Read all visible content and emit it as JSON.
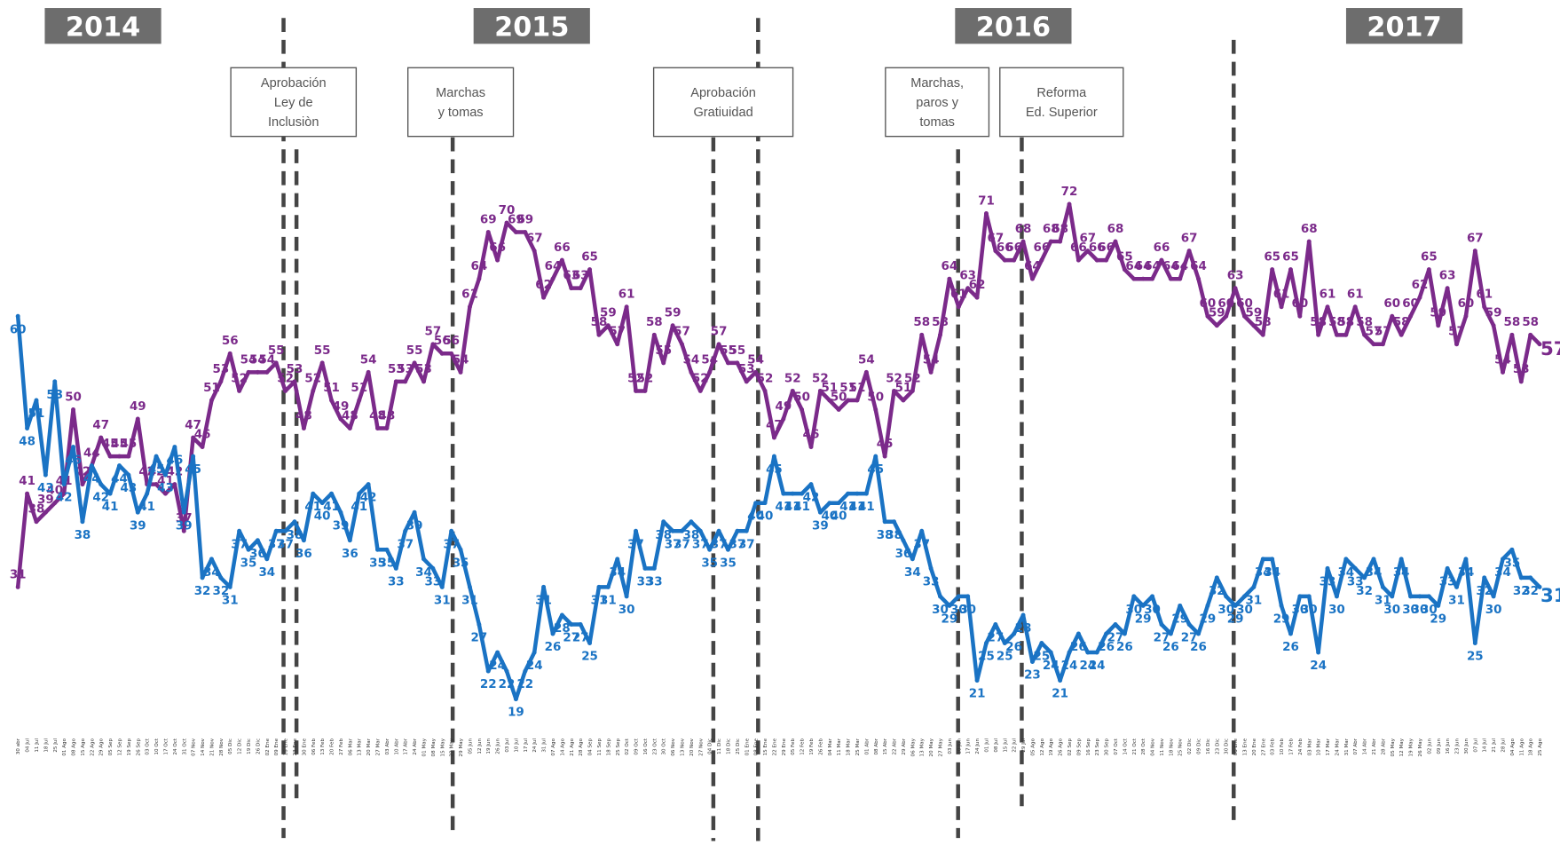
{
  "chart_data": {
    "type": "line",
    "years": [
      "2014",
      "2015",
      "2016",
      "2017"
    ],
    "annotations": [
      [
        "Aprobación",
        "Ley de",
        "Inclusiòn"
      ],
      [
        "Marchas",
        "y tomas"
      ],
      [
        "Aprobación",
        "Gratiuidad"
      ],
      [
        "Marchas,",
        "paros y",
        "tomas"
      ],
      [
        "Reforma",
        "Ed. Superior"
      ]
    ],
    "categories": [
      "30 abr",
      "04 Jul",
      "11 Jul",
      "18 Jul",
      "25 Jul",
      "01 Ago",
      "08 Ago",
      "15 Ago",
      "22 Ago",
      "29 Ago",
      "05 Sep",
      "12 Sep",
      "19 Sep",
      "26 Sep",
      "03 Oct",
      "10 Oct",
      "17 Oct",
      "24 Oct",
      "31 Oct",
      "07 Nov",
      "14 Nov",
      "21 Nov",
      "28 Nov",
      "05 Dic",
      "12 Dic",
      "19 Dic",
      "26 Dic",
      "02 Ene",
      "09 Ene",
      "16 Ene",
      "23 Ene",
      "30 Ene",
      "06 Feb",
      "13 Feb",
      "20 Feb",
      "27 Feb",
      "06 Mar",
      "13 Mar",
      "20 Mar",
      "27 Mar",
      "03 Abr",
      "10 Abr",
      "17 Abr",
      "24 Abr",
      "01 May",
      "08 May",
      "15 May",
      "22 May",
      "29 May",
      "05 Jun",
      "12 Jun",
      "19 Jun",
      "26 Jun",
      "03 Jul",
      "10 Jul",
      "17 Jul",
      "24 Jul",
      "31 Jul",
      "07 Ago",
      "14 Ago",
      "21 Ago",
      "28 Ago",
      "04 Sep",
      "11 Sep",
      "18 Sep",
      "25 Sep",
      "02 Oct",
      "09 Oct",
      "16 Oct",
      "23 Oct",
      "30 Oct",
      "06 Nov",
      "13 Nov",
      "20 Nov",
      "27 Nov",
      "04 Dic",
      "11 Dic",
      "18 Dic",
      "25 Dic",
      "01 Ene",
      "08 Ene",
      "15 Ene",
      "22 Ene",
      "29 Ene",
      "05 Feb",
      "12 Feb",
      "19 Feb",
      "26 Feb",
      "04 Mar",
      "11 Mar",
      "18 Mar",
      "25 Mar",
      "01 Abr",
      "08 Abr",
      "15 Abr",
      "22 Abr",
      "29 Abr",
      "06 May",
      "13 May",
      "20 May",
      "27 May",
      "03 Jun",
      "10 Jun",
      "17 Jun",
      "24 Jun",
      "01 Jul",
      "08 Jul",
      "15 Jul",
      "22 Jul",
      "29 Jul",
      "05 Ago",
      "12 Ago",
      "19 Ago",
      "26 Ago",
      "02 Sep",
      "09 Sep",
      "16 Sep",
      "23 Sep",
      "30 Sep",
      "07 Oct",
      "14 Oct",
      "21 Oct",
      "28 Oct",
      "04 Nov",
      "11 Nov",
      "18 Nov",
      "25 Nov",
      "02 Dic",
      "09 Dic",
      "16 Dic",
      "23 Dic",
      "30 Dic",
      "06 Ene",
      "13 Ene",
      "20 Ene",
      "27 Ene",
      "03 Feb",
      "10 Feb",
      "17 Feb",
      "24 Feb",
      "03 Mar",
      "10 Mar",
      "17 Mar",
      "24 Mar",
      "31 Mar",
      "07 Abr",
      "14 Abr",
      "21 Abr",
      "28 Abr",
      "05 May",
      "12 May",
      "19 May",
      "26 May",
      "02 Jun",
      "09 Jun",
      "16 Jun",
      "23 Jun",
      "30 Jun",
      "07 Jul",
      "14 Jul",
      "21 Jul",
      "28 Jul",
      "04 Ago",
      "11 Ago",
      "18 Ago",
      "25 Ago"
    ],
    "series": [
      {
        "color": "#7b2a8a",
        "values": [
          31,
          41,
          38,
          39,
          40,
          41,
          50,
          42,
          44,
          47,
          45,
          45,
          45,
          49,
          42,
          42,
          41,
          42,
          37,
          47,
          46,
          51,
          53,
          56,
          52,
          54,
          54,
          54,
          55,
          52,
          53,
          48,
          52,
          55,
          51,
          49,
          48,
          51,
          54,
          48,
          48,
          53,
          53,
          55,
          53,
          57,
          56,
          56,
          54,
          61,
          64,
          69,
          66,
          70,
          69,
          69,
          67,
          62,
          64,
          66,
          63,
          63,
          65,
          58,
          59,
          57,
          61,
          52,
          52,
          58,
          55,
          59,
          57,
          54,
          52,
          54,
          57,
          55,
          55,
          53,
          54,
          52,
          47,
          49,
          52,
          50,
          46,
          52,
          51,
          50,
          51,
          51,
          54,
          50,
          45,
          52,
          51,
          52,
          58,
          54,
          58,
          64,
          61,
          63,
          62,
          71,
          67,
          66,
          66,
          68,
          64,
          66,
          68,
          68,
          72,
          66,
          67,
          66,
          66,
          68,
          65,
          64,
          64,
          64,
          66,
          64,
          64,
          67,
          64,
          60,
          59,
          60,
          63,
          60,
          59,
          58,
          65,
          61,
          65,
          60,
          68,
          58,
          61,
          58,
          58,
          61,
          58,
          57,
          57,
          60,
          58,
          60,
          62,
          65,
          59,
          63,
          57,
          60,
          67,
          61,
          59,
          54,
          58,
          53,
          58,
          57
        ]
      },
      {
        "color": "#1a73c4",
        "values": [
          60,
          48,
          51,
          43,
          53,
          42,
          46,
          38,
          44,
          42,
          41,
          44,
          43,
          39,
          41,
          45,
          43,
          46,
          39,
          45,
          32,
          34,
          32,
          31,
          37,
          35,
          36,
          34,
          37,
          37,
          38,
          36,
          41,
          40,
          41,
          39,
          36,
          41,
          42,
          35,
          35,
          33,
          37,
          39,
          34,
          33,
          31,
          37,
          35,
          31,
          27,
          22,
          24,
          22,
          19,
          22,
          24,
          31,
          26,
          28,
          27,
          27,
          25,
          31,
          31,
          34,
          30,
          37,
          33,
          33,
          38,
          37,
          37,
          38,
          37,
          35,
          37,
          35,
          37,
          37,
          40,
          40,
          45,
          41,
          41,
          41,
          42,
          39,
          40,
          40,
          41,
          41,
          41,
          45,
          38,
          38,
          36,
          34,
          37,
          33,
          30,
          29,
          30,
          30,
          21,
          25,
          27,
          25,
          26,
          28,
          23,
          25,
          24,
          21,
          24,
          26,
          24,
          24,
          26,
          27,
          26,
          30,
          29,
          30,
          27,
          26,
          29,
          27,
          26,
          29,
          32,
          30,
          29,
          30,
          31,
          34,
          34,
          29,
          26,
          30,
          30,
          24,
          33,
          30,
          34,
          33,
          32,
          34,
          31,
          30,
          34,
          30,
          30,
          30,
          29,
          33,
          31,
          34,
          25,
          32,
          30,
          34,
          35,
          32,
          32,
          31
        ]
      }
    ],
    "ylim": [
      15,
      80
    ]
  }
}
